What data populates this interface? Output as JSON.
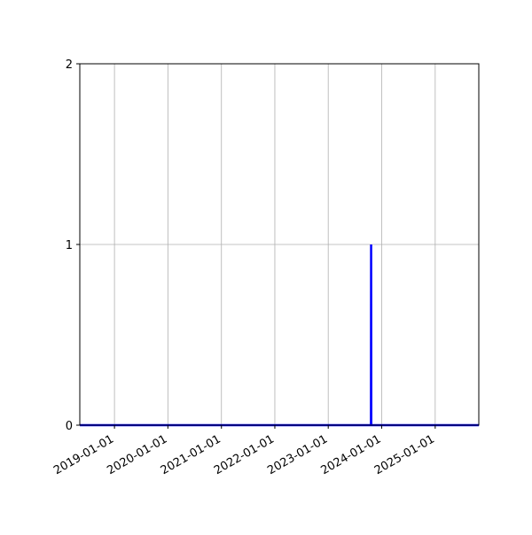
{
  "chart_data": {
    "type": "line",
    "title": "",
    "xlabel": "",
    "ylabel": "",
    "x_type": "date",
    "xlim": [
      "2018-05-09",
      "2025-10-26"
    ],
    "ylim": [
      0,
      2
    ],
    "grid": true,
    "x_ticks": [
      "2019-01-01",
      "2020-01-01",
      "2021-01-01",
      "2022-01-01",
      "2023-01-01",
      "2024-01-01",
      "2025-01-01"
    ],
    "y_ticks": [
      "0",
      "1",
      "2"
    ],
    "series": [
      {
        "color": "#0000ff",
        "x": [
          "2018-05-09",
          "2023-10-20",
          "2023-10-21",
          "2023-10-22",
          "2025-10-26"
        ],
        "y": [
          0,
          0,
          1,
          0,
          0
        ]
      }
    ]
  }
}
